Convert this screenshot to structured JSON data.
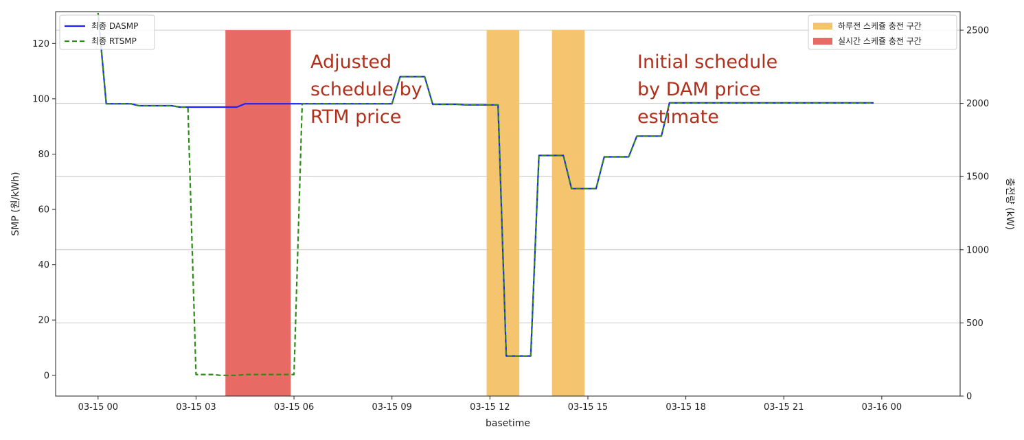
{
  "chart_data": {
    "type": "line",
    "xlabel": "basetime",
    "ylabel": "SMP (원/kWh)",
    "y2label": "충전량 (kW)",
    "x_ticks": [
      "03-15 00",
      "03-15 03",
      "03-15 06",
      "03-15 09",
      "03-15 12",
      "03-15 15",
      "03-15 18",
      "03-15 21",
      "03-16 00"
    ],
    "y_ticks": [
      0,
      20,
      40,
      60,
      80,
      100,
      120
    ],
    "y2_ticks": [
      0,
      500,
      1000,
      1500,
      2000,
      2500
    ],
    "ylim": [
      -7.5,
      131.5
    ],
    "y2lim": [
      0,
      2500
    ],
    "xlim_hours": [
      -1.3,
      26.4
    ],
    "grid": "horizontal",
    "series": [
      {
        "name": "최종 DASMP",
        "color": "#1f1fff",
        "style": "solid",
        "x": [
          0,
          0.25,
          0.5,
          0.75,
          1,
          1.25,
          1.5,
          1.75,
          2,
          2.25,
          2.5,
          2.75,
          3,
          3.25,
          3.5,
          3.75,
          4,
          4.25,
          4.5,
          4.75,
          5,
          5.25,
          5.5,
          5.75,
          6,
          6.25,
          6.5,
          6.75,
          7,
          7.25,
          7.5,
          7.75,
          8,
          8.25,
          8.5,
          8.75,
          9,
          9.25,
          9.5,
          9.75,
          10,
          10.25,
          10.5,
          10.75,
          11,
          11.25,
          11.5,
          11.75,
          12,
          12.25,
          12.5,
          12.75,
          13,
          13.25,
          13.5,
          13.75,
          14,
          14.25,
          14.5,
          14.75,
          15,
          15.25,
          15.5,
          15.75,
          16,
          16.25,
          16.5,
          16.75,
          17,
          17.25,
          17.5,
          17.75,
          18,
          18.25,
          18.5,
          18.75,
          19,
          19.25,
          19.5,
          19.75,
          20,
          20.25,
          20.5,
          20.75,
          21,
          21.25,
          21.5,
          21.75,
          22,
          22.25,
          22.5,
          22.75,
          23,
          23.25,
          23.5,
          23.75
        ],
        "values": [
          131,
          98.2,
          98.2,
          98.2,
          98.2,
          97.5,
          97.5,
          97.5,
          97.5,
          97.5,
          97,
          97,
          97,
          97,
          97,
          97,
          97,
          97,
          98.2,
          98.2,
          98.2,
          98.2,
          98.2,
          98.2,
          98.2,
          98.2,
          98.2,
          98.2,
          98.2,
          98.2,
          98.2,
          98.2,
          98.2,
          98.2,
          98.2,
          98.2,
          98.2,
          108,
          108,
          108,
          108,
          98,
          98,
          98,
          98,
          97.8,
          97.8,
          97.8,
          97.8,
          97.8,
          7,
          7,
          7,
          7,
          79.5,
          79.5,
          79.5,
          79.5,
          67.5,
          67.5,
          67.5,
          67.5,
          79,
          79,
          79,
          79,
          86.5,
          86.5,
          86.5,
          86.5,
          98.5,
          98.5,
          98.5,
          98.5,
          98.5,
          98.5,
          98.5,
          98.5,
          98.5,
          98.5,
          98.5,
          98.5,
          98.5,
          98.5,
          98.5,
          98.5,
          98.5,
          98.5,
          98.5,
          98.5,
          98.5,
          98.5,
          98.5,
          98.5,
          98.5,
          98.5
        ]
      },
      {
        "name": "최종 RTSMP",
        "color": "#2e8b1a",
        "style": "dashed",
        "x": [
          0,
          0.25,
          0.5,
          0.75,
          1,
          1.25,
          1.5,
          1.75,
          2,
          2.25,
          2.5,
          2.75,
          3,
          3.25,
          3.5,
          3.75,
          4,
          4.25,
          4.5,
          4.75,
          5,
          5.25,
          5.5,
          5.75,
          6,
          6.25,
          6.5,
          6.75,
          7,
          7.25,
          7.5,
          7.75,
          8,
          8.25,
          8.5,
          8.75,
          9,
          9.25,
          9.5,
          9.75,
          10,
          10.25,
          10.5,
          10.75,
          11,
          11.25,
          11.5,
          11.75,
          12,
          12.25,
          12.5,
          12.75,
          13,
          13.25,
          13.5,
          13.75,
          14,
          14.25,
          14.5,
          14.75,
          15,
          15.25,
          15.5,
          15.75,
          16,
          16.25,
          16.5,
          16.75,
          17,
          17.25,
          17.5,
          17.75,
          18,
          18.25,
          18.5,
          18.75,
          19,
          19.25,
          19.5,
          19.75,
          20,
          20.25,
          20.5,
          20.75,
          21,
          21.25,
          21.5,
          21.75,
          22,
          22.25,
          22.5,
          22.75,
          23,
          23.25,
          23.5,
          23.75
        ],
        "values": [
          131,
          98.2,
          98.2,
          98.2,
          98.2,
          97.5,
          97.5,
          97.5,
          97.5,
          97.5,
          97,
          97,
          0.3,
          0.3,
          0.3,
          0,
          0,
          0,
          0.3,
          0.3,
          0.3,
          0.3,
          0.3,
          0.3,
          0.3,
          98.2,
          98.2,
          98.2,
          98.2,
          98.2,
          98.2,
          98.2,
          98.2,
          98.2,
          98.2,
          98.2,
          98.2,
          108,
          108,
          108,
          108,
          98,
          98,
          98,
          98,
          97.8,
          97.8,
          97.8,
          97.8,
          97.8,
          7,
          7,
          7,
          7,
          79.5,
          79.5,
          79.5,
          79.5,
          67.5,
          67.5,
          67.5,
          67.5,
          79,
          79,
          79,
          79,
          86.5,
          86.5,
          86.5,
          86.5,
          98.5,
          98.5,
          98.5,
          98.5,
          98.5,
          98.5,
          98.5,
          98.5,
          98.5,
          98.5,
          98.5,
          98.5,
          98.5,
          98.5,
          98.5,
          98.5,
          98.5,
          98.5,
          98.5,
          98.5,
          98.5,
          98.5,
          98.5,
          98.5,
          98.5,
          98.5
        ]
      }
    ],
    "bars": [
      {
        "name": "하루전 스케줄 충전 구간",
        "color": "#f4c56e",
        "start_hour": 11.9,
        "end_hour": 12.9,
        "value_kw": 2500
      },
      {
        "name": "하루전 스케줄 충전 구간",
        "color": "#f4c56e",
        "start_hour": 13.9,
        "end_hour": 14.9,
        "value_kw": 2500
      },
      {
        "name": "실시간 스케쥴 충전 구간",
        "color": "#e86a64",
        "start_hour": 3.9,
        "end_hour": 5.9,
        "value_kw": 2500
      }
    ],
    "legend_left": [
      {
        "label": "최종 DASMP",
        "color": "#1f1fff",
        "style": "solid"
      },
      {
        "label": "최종 RTSMP",
        "color": "#2e8b1a",
        "style": "dashed"
      }
    ],
    "legend_right": [
      {
        "label": "하루전 스케쥴 충전 구간",
        "color": "#f4c56e"
      },
      {
        "label": "실시간 스케쥴 충전 구간",
        "color": "#e86a64"
      }
    ],
    "legend_left_placement": "top-left",
    "legend_right_placement": "top-right",
    "annotations": [
      {
        "lines": [
          "Adjusted",
          "schedule by",
          "RTM price"
        ],
        "color": "#b0301c"
      },
      {
        "lines": [
          "Initial schedule",
          "by DAM price",
          "estimate"
        ],
        "color": "#b0301c"
      }
    ]
  }
}
